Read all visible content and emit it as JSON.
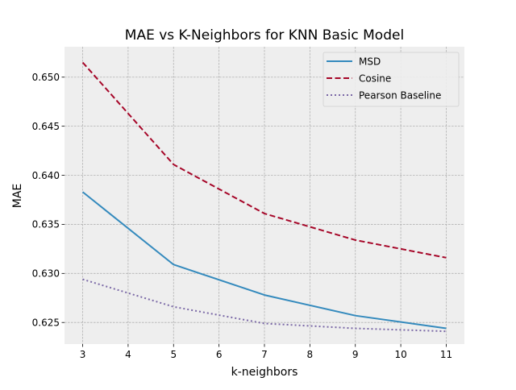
{
  "chart_data": {
    "type": "line",
    "title": "MAE vs K-Neighbors for KNN Basic Model",
    "xlabel": "k-neighbors",
    "ylabel": "MAE",
    "x": [
      3,
      5,
      7,
      9,
      11
    ],
    "xticks": [
      3,
      4,
      5,
      6,
      7,
      8,
      9,
      10,
      11
    ],
    "yticks": [
      0.625,
      0.63,
      0.635,
      0.64,
      0.645,
      0.65
    ],
    "xlim": [
      2.6,
      11.4
    ],
    "ylim": [
      0.6228,
      0.6531
    ],
    "grid": true,
    "legend_position": "top-right",
    "series": [
      {
        "name": "MSD",
        "color": "#348abd",
        "style": "solid",
        "values": [
          0.6383,
          0.6309,
          0.6278,
          0.6257,
          0.6244
        ]
      },
      {
        "name": "Cosine",
        "color": "#a60628",
        "style": "dashed",
        "values": [
          0.6515,
          0.6411,
          0.6361,
          0.6334,
          0.6316
        ]
      },
      {
        "name": "Pearson Baseline",
        "color": "#7a68a6",
        "style": "dotted",
        "values": [
          0.6294,
          0.6266,
          0.6249,
          0.6244,
          0.6241
        ]
      }
    ],
    "background_color": "#eeeeee"
  }
}
